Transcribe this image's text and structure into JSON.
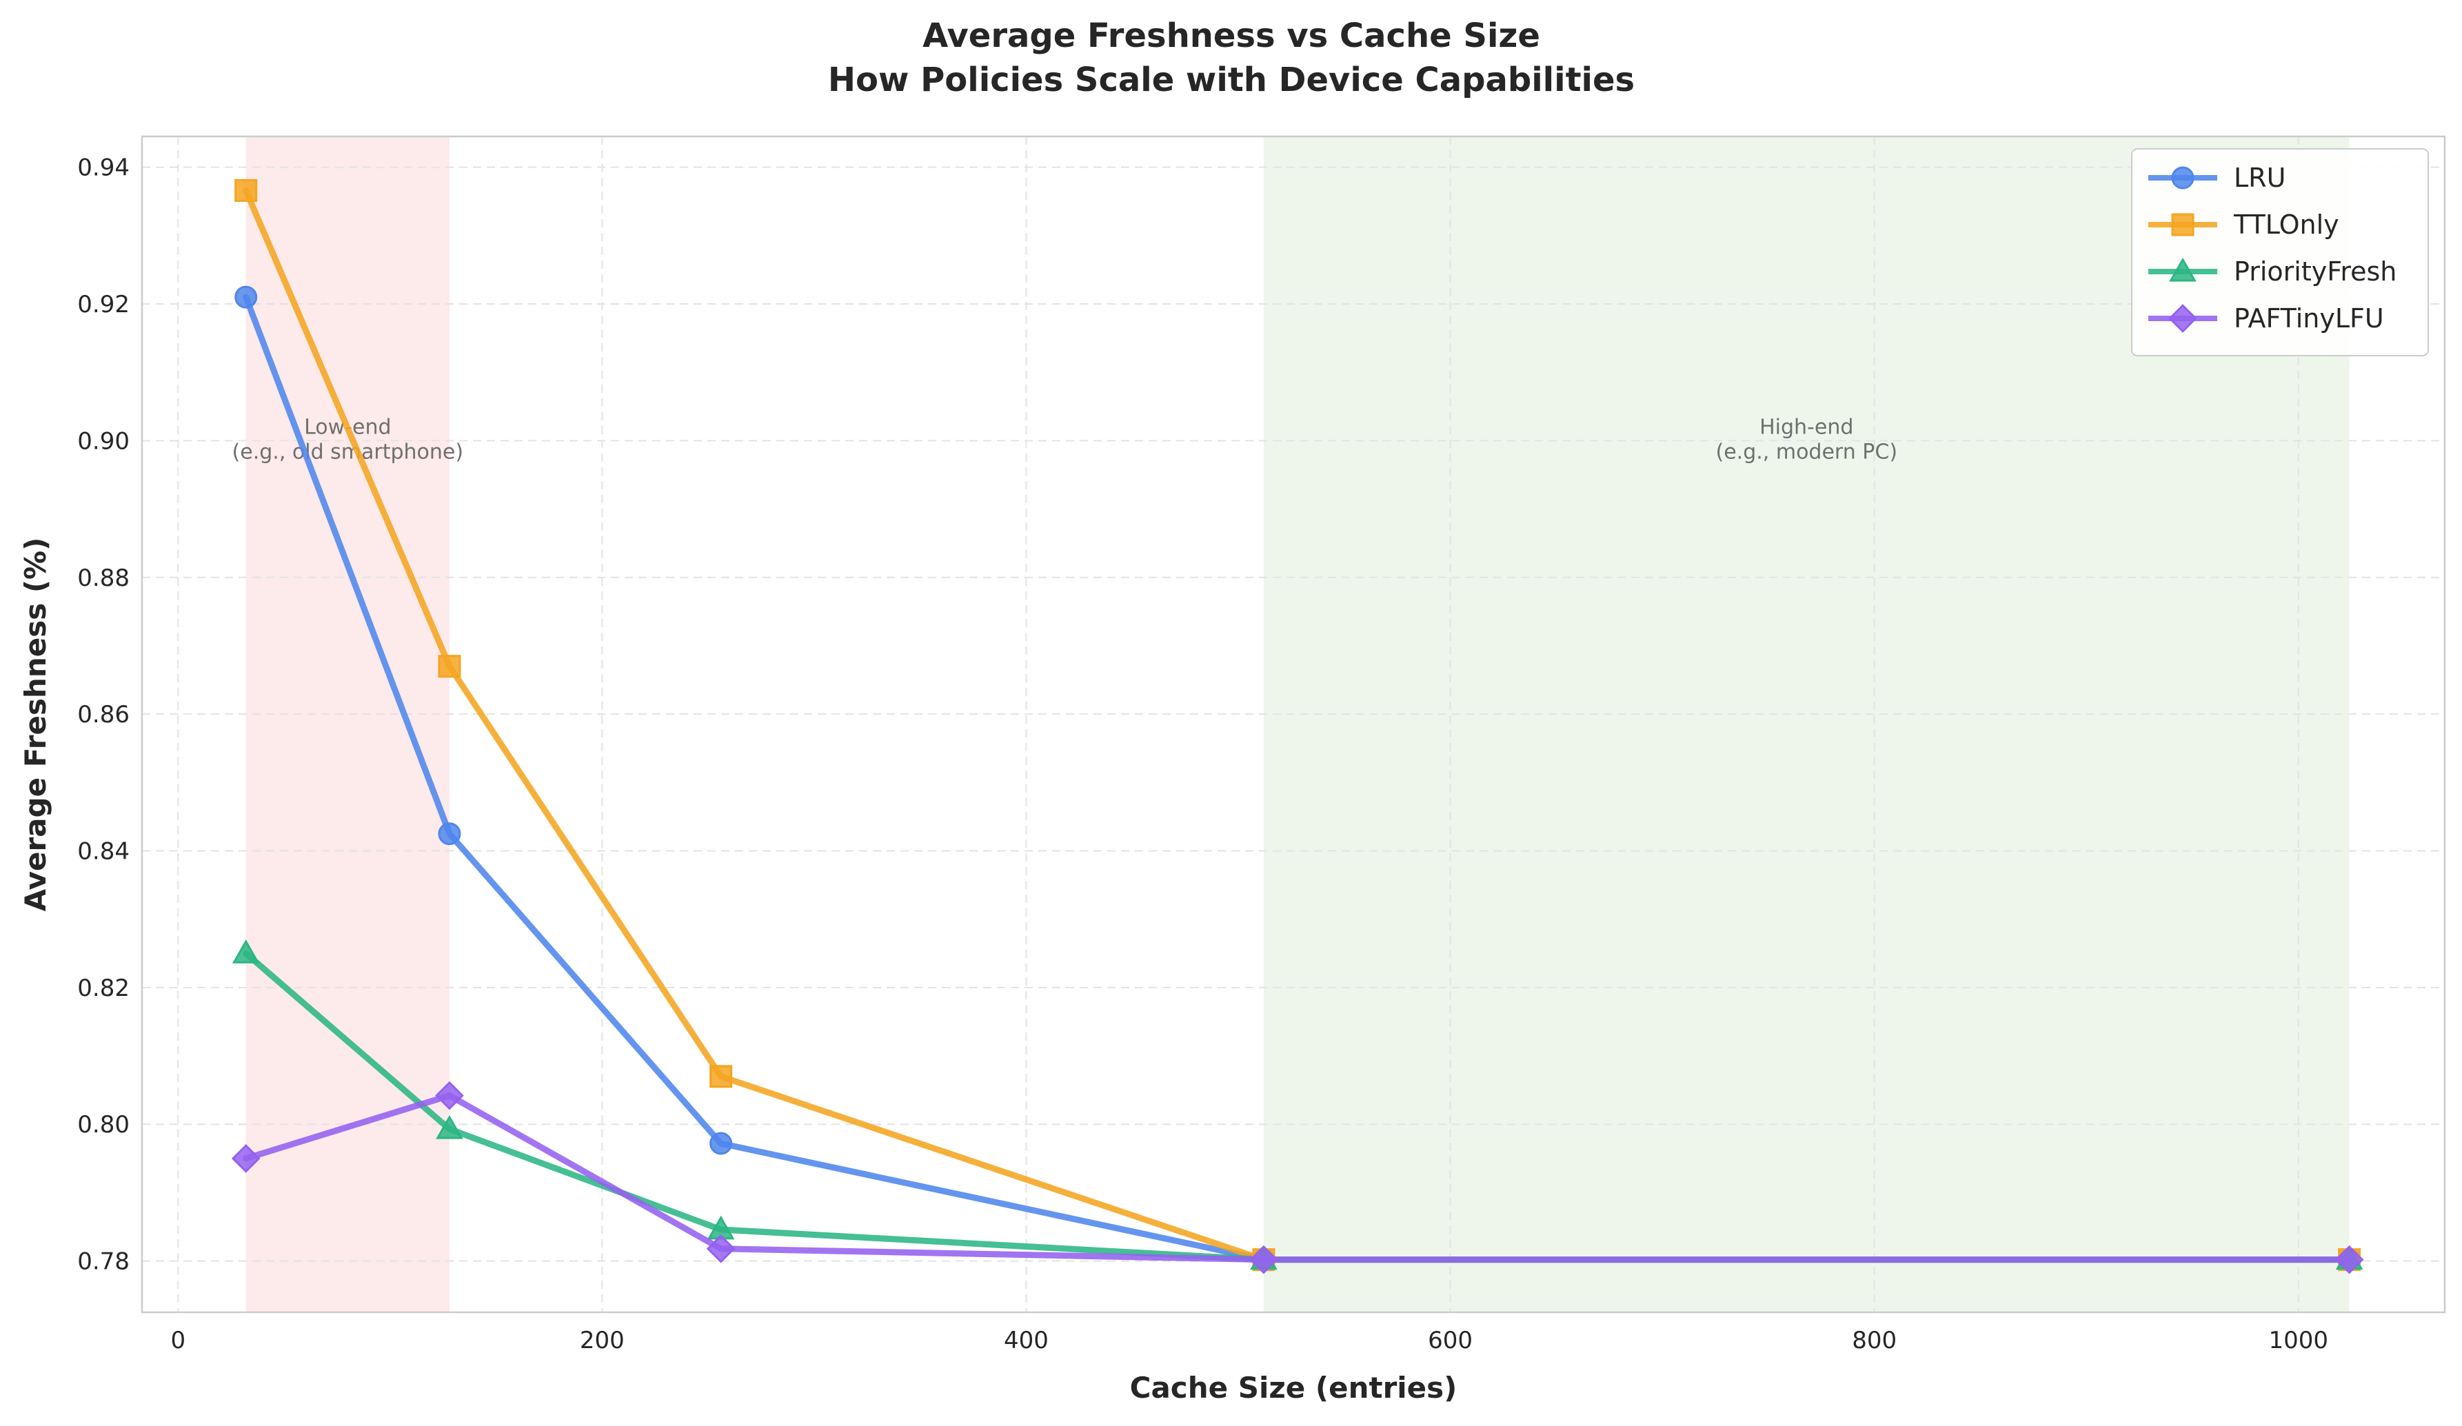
{
  "chart_data": {
    "type": "line",
    "title": "Average Freshness vs Cache Size",
    "subtitle": "How Policies Scale with Device Capabilities",
    "xlabel": "Cache Size (entries)",
    "ylabel": "Average Freshness (%)",
    "xlim": [
      -17,
      1069
    ],
    "ylim": [
      0.7725,
      0.9445
    ],
    "xticks": [
      0,
      200,
      400,
      600,
      800,
      1000
    ],
    "yticks": [
      0.78,
      0.8,
      0.82,
      0.84,
      0.86,
      0.88,
      0.9,
      0.92,
      0.94
    ],
    "grid": true,
    "legend_position": "top-right",
    "x": [
      32,
      128,
      256,
      512,
      1024
    ],
    "series": [
      {
        "name": "LRU",
        "color": "#4f86ec",
        "marker": "circle",
        "values": [
          0.921,
          0.8425,
          0.7972,
          0.7802,
          0.7802
        ]
      },
      {
        "name": "TTLOnly",
        "color": "#f4a521",
        "marker": "square",
        "values": [
          0.9366,
          0.867,
          0.807,
          0.7802,
          0.7802
        ]
      },
      {
        "name": "PriorityFresh",
        "color": "#2bb684",
        "marker": "triangle",
        "values": [
          0.825,
          0.7993,
          0.7846,
          0.7802,
          0.7802
        ]
      },
      {
        "name": "PAFTinyLFU",
        "color": "#9461f0",
        "marker": "diamond",
        "values": [
          0.795,
          0.8042,
          0.7818,
          0.7802,
          0.7802
        ]
      }
    ],
    "regions": [
      {
        "x_start": 32,
        "x_end": 128,
        "color": "#fdeaea",
        "label_line1": "Low-end",
        "label_line2": "(e.g., old smartphone)",
        "label_y": 0.899
      },
      {
        "x_start": 512,
        "x_end": 1024,
        "color": "#eef6ec",
        "label_line1": "High-end",
        "label_line2": "(e.g., modern PC)",
        "label_y": 0.899
      }
    ]
  }
}
